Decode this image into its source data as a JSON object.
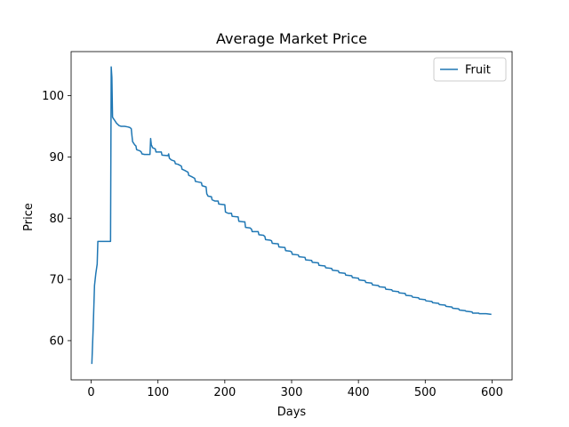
{
  "chart_data": {
    "type": "line",
    "title": "Average Market Price",
    "xlabel": "Days",
    "ylabel": "Price",
    "xlim": [
      -30,
      630
    ],
    "ylim": [
      53.6,
      107.2
    ],
    "x_ticks": [
      0,
      100,
      200,
      300,
      400,
      500,
      600
    ],
    "y_ticks": [
      60,
      70,
      80,
      90,
      100
    ],
    "grid": false,
    "legend_position": "top-right",
    "series": [
      {
        "name": "Fruit",
        "color": "#1f77b4",
        "points": [
          [
            1,
            56.2
          ],
          [
            3,
            62.0
          ],
          [
            5,
            69.0
          ],
          [
            7,
            71.0
          ],
          [
            9,
            72.5
          ],
          [
            10,
            76.2
          ],
          [
            20,
            76.2
          ],
          [
            29,
            76.2
          ],
          [
            30,
            104.7
          ],
          [
            31,
            103.0
          ],
          [
            32,
            96.5
          ],
          [
            33,
            96.3
          ],
          [
            35,
            96.0
          ],
          [
            38,
            95.5
          ],
          [
            42,
            95.1
          ],
          [
            45,
            95.0
          ],
          [
            50,
            95.0
          ],
          [
            55,
            94.9
          ],
          [
            58,
            94.8
          ],
          [
            60,
            94.6
          ],
          [
            61,
            93.5
          ],
          [
            62,
            92.5
          ],
          [
            65,
            92.0
          ],
          [
            67,
            91.8
          ],
          [
            68,
            91.2
          ],
          [
            70,
            91.1
          ],
          [
            73,
            91.0
          ],
          [
            75,
            90.8
          ],
          [
            76,
            90.5
          ],
          [
            80,
            90.4
          ],
          [
            88,
            90.4
          ],
          [
            89,
            93.0
          ],
          [
            90,
            92.0
          ],
          [
            92,
            91.5
          ],
          [
            96,
            91.3
          ],
          [
            97,
            90.8
          ],
          [
            105,
            90.8
          ],
          [
            106,
            90.3
          ],
          [
            115,
            90.2
          ],
          [
            116,
            90.5
          ],
          [
            117,
            89.8
          ],
          [
            120,
            89.5
          ],
          [
            125,
            89.3
          ],
          [
            126,
            88.9
          ],
          [
            130,
            88.8
          ],
          [
            135,
            88.5
          ],
          [
            136,
            88.0
          ],
          [
            140,
            87.8
          ],
          [
            145,
            87.5
          ],
          [
            146,
            87.0
          ],
          [
            150,
            86.8
          ],
          [
            155,
            86.5
          ],
          [
            156,
            86.0
          ],
          [
            165,
            85.8
          ],
          [
            166,
            85.3
          ],
          [
            172,
            85.1
          ],
          [
            173,
            84.0
          ],
          [
            175,
            83.6
          ],
          [
            180,
            83.5
          ],
          [
            181,
            83.0
          ],
          [
            185,
            82.8
          ],
          [
            190,
            82.8
          ],
          [
            191,
            82.3
          ],
          [
            200,
            82.2
          ],
          [
            201,
            81.0
          ],
          [
            205,
            80.8
          ],
          [
            210,
            80.8
          ],
          [
            211,
            80.3
          ],
          [
            220,
            80.2
          ],
          [
            221,
            79.5
          ],
          [
            228,
            79.4
          ],
          [
            230,
            79.4
          ],
          [
            231,
            78.5
          ],
          [
            238,
            78.4
          ],
          [
            240,
            78.2
          ],
          [
            241,
            77.8
          ],
          [
            248,
            77.8
          ],
          [
            250,
            77.8
          ],
          [
            251,
            77.3
          ],
          [
            258,
            77.2
          ],
          [
            260,
            77.0
          ],
          [
            261,
            76.5
          ],
          [
            268,
            76.4
          ],
          [
            270,
            76.3
          ],
          [
            271,
            75.9
          ],
          [
            280,
            75.8
          ],
          [
            281,
            75.3
          ],
          [
            290,
            75.2
          ],
          [
            291,
            74.7
          ],
          [
            298,
            74.6
          ],
          [
            300,
            74.5
          ],
          [
            301,
            74.1
          ],
          [
            310,
            74.0
          ],
          [
            311,
            73.7
          ],
          [
            320,
            73.6
          ],
          [
            321,
            73.2
          ],
          [
            330,
            73.1
          ],
          [
            331,
            72.8
          ],
          [
            340,
            72.7
          ],
          [
            341,
            72.3
          ],
          [
            350,
            72.2
          ],
          [
            351,
            71.9
          ],
          [
            360,
            71.8
          ],
          [
            361,
            71.5
          ],
          [
            370,
            71.4
          ],
          [
            371,
            71.1
          ],
          [
            380,
            71.0
          ],
          [
            381,
            70.7
          ],
          [
            390,
            70.6
          ],
          [
            391,
            70.3
          ],
          [
            400,
            70.2
          ],
          [
            401,
            69.9
          ],
          [
            410,
            69.8
          ],
          [
            411,
            69.5
          ],
          [
            420,
            69.4
          ],
          [
            421,
            69.1
          ],
          [
            430,
            69.0
          ],
          [
            431,
            68.8
          ],
          [
            440,
            68.7
          ],
          [
            441,
            68.4
          ],
          [
            450,
            68.3
          ],
          [
            451,
            68.1
          ],
          [
            460,
            68.0
          ],
          [
            461,
            67.8
          ],
          [
            470,
            67.7
          ],
          [
            471,
            67.4
          ],
          [
            480,
            67.3
          ],
          [
            481,
            67.1
          ],
          [
            490,
            67.0
          ],
          [
            491,
            66.8
          ],
          [
            500,
            66.7
          ],
          [
            501,
            66.5
          ],
          [
            510,
            66.4
          ],
          [
            511,
            66.2
          ],
          [
            520,
            66.1
          ],
          [
            521,
            65.9
          ],
          [
            530,
            65.8
          ],
          [
            531,
            65.6
          ],
          [
            540,
            65.5
          ],
          [
            541,
            65.3
          ],
          [
            550,
            65.2
          ],
          [
            551,
            65.0
          ],
          [
            560,
            64.9
          ],
          [
            561,
            64.8
          ],
          [
            570,
            64.7
          ],
          [
            571,
            64.5
          ],
          [
            580,
            64.5
          ],
          [
            581,
            64.4
          ],
          [
            590,
            64.4
          ],
          [
            591,
            64.4
          ],
          [
            599,
            64.3
          ]
        ]
      }
    ]
  }
}
